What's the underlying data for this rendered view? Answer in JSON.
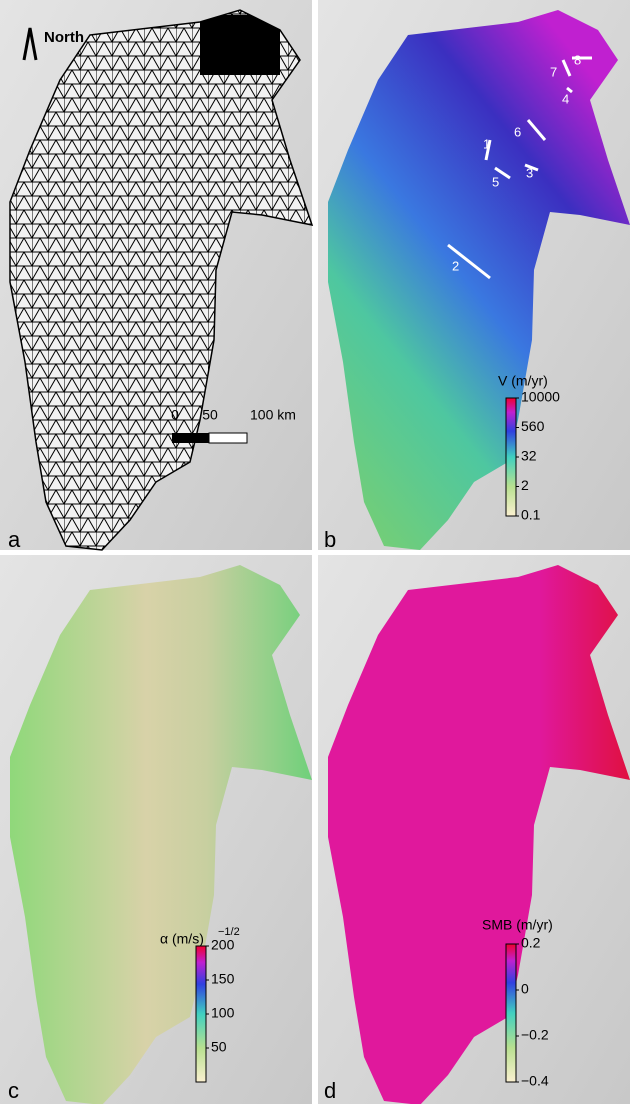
{
  "panels": [
    {
      "label": "a",
      "north": "North",
      "scale_bar": [
        "0",
        "50",
        "100 km"
      ]
    },
    {
      "label": "b",
      "colorbar": {
        "title": "V (m/yr)",
        "ticks": [
          "10000",
          "560",
          "32",
          "2",
          "0.1"
        ]
      },
      "profiles": [
        "1",
        "2",
        "3",
        "4",
        "5",
        "6",
        "7",
        "8"
      ]
    },
    {
      "label": "c",
      "colorbar": {
        "title": "α (m/s)",
        "title_exponent": "−1/2",
        "ticks": [
          "200",
          "150",
          "100",
          "50"
        ]
      }
    },
    {
      "label": "d",
      "colorbar": {
        "title": "SMB (m/yr)",
        "ticks": [
          "0.2",
          "0",
          "−0.2",
          "−0.4"
        ]
      }
    }
  ]
}
